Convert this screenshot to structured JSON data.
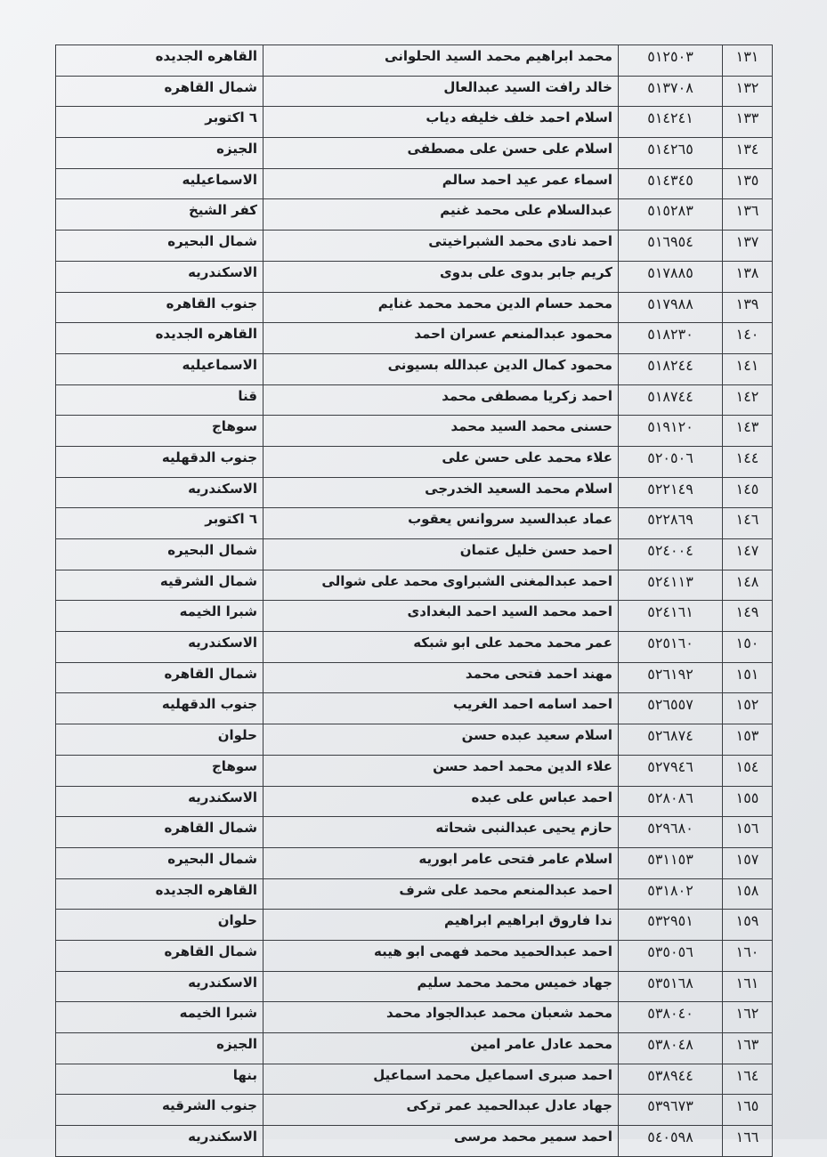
{
  "rows": [
    {
      "num": "١٣١",
      "code": "٥١٢٥٠٣",
      "name": "محمد ابراهيم محمد السيد الحلوانى",
      "gov": "القاهره الجديده"
    },
    {
      "num": "١٣٢",
      "code": "٥١٣٧٠٨",
      "name": "خالد رافت السيد عبدالعال",
      "gov": "شمال القاهره"
    },
    {
      "num": "١٣٣",
      "code": "٥١٤٢٤١",
      "name": "اسلام احمد خلف خليفه دياب",
      "gov": "٦ اكتوبر"
    },
    {
      "num": "١٣٤",
      "code": "٥١٤٢٦٥",
      "name": "اسلام على حسن على مصطفى",
      "gov": "الجيزه"
    },
    {
      "num": "١٣٥",
      "code": "٥١٤٣٤٥",
      "name": "اسماء عمر عيد احمد سالم",
      "gov": "الاسماعيليه"
    },
    {
      "num": "١٣٦",
      "code": "٥١٥٢٨٣",
      "name": "عبدالسلام على محمد غنيم",
      "gov": "كفر الشيخ"
    },
    {
      "num": "١٣٧",
      "code": "٥١٦٩٥٤",
      "name": "احمد نادى محمد الشبراخيتى",
      "gov": "شمال البحيره"
    },
    {
      "num": "١٣٨",
      "code": "٥١٧٨٨٥",
      "name": "كريم جابر بدوى على بدوى",
      "gov": "الاسكندريه"
    },
    {
      "num": "١٣٩",
      "code": "٥١٧٩٨٨",
      "name": "محمد حسام الدين محمد محمد غنايم",
      "gov": "جنوب القاهره"
    },
    {
      "num": "١٤٠",
      "code": "٥١٨٢٣٠",
      "name": "محمود عبدالمنعم عسران احمد",
      "gov": "القاهره الجديده"
    },
    {
      "num": "١٤١",
      "code": "٥١٨٢٤٤",
      "name": "محمود كمال الدين عبدالله بسيونى",
      "gov": "الاسماعيليه"
    },
    {
      "num": "١٤٢",
      "code": "٥١٨٧٤٤",
      "name": "احمد زكريا مصطفى محمد",
      "gov": "قنا"
    },
    {
      "num": "١٤٣",
      "code": "٥١٩١٢٠",
      "name": "حسنى محمد السيد محمد",
      "gov": "سوهاج"
    },
    {
      "num": "١٤٤",
      "code": "٥٢٠٥٠٦",
      "name": "علاء محمد على حسن على",
      "gov": "جنوب الدقهليه"
    },
    {
      "num": "١٤٥",
      "code": "٥٢٢١٤٩",
      "name": "اسلام محمد السعيد الخدرجى",
      "gov": "الاسكندريه"
    },
    {
      "num": "١٤٦",
      "code": "٥٢٢٨٦٩",
      "name": "عماد عبدالسيد سروانس يعقوب",
      "gov": "٦ اكتوبر"
    },
    {
      "num": "١٤٧",
      "code": "٥٢٤٠٠٤",
      "name": "احمد حسن خليل عتمان",
      "gov": "شمال البحيره"
    },
    {
      "num": "١٤٨",
      "code": "٥٢٤١١٣",
      "name": "احمد عبدالمغنى الشبراوى محمد على شوالى",
      "gov": "شمال الشرقيه"
    },
    {
      "num": "١٤٩",
      "code": "٥٢٤١٦١",
      "name": "احمد محمد السيد احمد البغدادى",
      "gov": "شبرا الخيمه"
    },
    {
      "num": "١٥٠",
      "code": "٥٢٥١٦٠",
      "name": "عمر محمد محمد على ابو شبكه",
      "gov": "الاسكندريه"
    },
    {
      "num": "١٥١",
      "code": "٥٢٦١٩٢",
      "name": "مهند احمد فتحى محمد",
      "gov": "شمال القاهره"
    },
    {
      "num": "١٥٢",
      "code": "٥٢٦٥٥٧",
      "name": "احمد اسامه احمد الغريب",
      "gov": "جنوب الدقهليه"
    },
    {
      "num": "١٥٣",
      "code": "٥٢٦٨٧٤",
      "name": "اسلام سعيد عبده حسن",
      "gov": "حلوان"
    },
    {
      "num": "١٥٤",
      "code": "٥٢٧٩٤٦",
      "name": "علاء الدين محمد احمد حسن",
      "gov": "سوهاج"
    },
    {
      "num": "١٥٥",
      "code": "٥٢٨٠٨٦",
      "name": "احمد عباس على عبده",
      "gov": "الاسكندريه"
    },
    {
      "num": "١٥٦",
      "code": "٥٢٩٦٨٠",
      "name": "حازم يحيى عبدالنبى شحاته",
      "gov": "شمال القاهره"
    },
    {
      "num": "١٥٧",
      "code": "٥٣١١٥٣",
      "name": "اسلام عامر فتحى عامر ابوريه",
      "gov": "شمال البحيره"
    },
    {
      "num": "١٥٨",
      "code": "٥٣١٨٠٢",
      "name": "احمد عبدالمنعم محمد على شرف",
      "gov": "القاهره الجديده"
    },
    {
      "num": "١٥٩",
      "code": "٥٣٢٩٥١",
      "name": "ندا فاروق ابراهيم ابراهيم",
      "gov": "حلوان"
    },
    {
      "num": "١٦٠",
      "code": "٥٣٥٠٥٦",
      "name": "احمد عبدالحميد محمد فهمى ابو هيبه",
      "gov": "شمال القاهره"
    },
    {
      "num": "١٦١",
      "code": "٥٣٥١٦٨",
      "name": "جهاد خميس محمد محمد سليم",
      "gov": "الاسكندريه"
    },
    {
      "num": "١٦٢",
      "code": "٥٣٨٠٤٠",
      "name": "محمد شعبان محمد عبدالجواد محمد",
      "gov": "شبرا الخيمه"
    },
    {
      "num": "١٦٣",
      "code": "٥٣٨٠٤٨",
      "name": "محمد عادل عامر امين",
      "gov": "الجيزه"
    },
    {
      "num": "١٦٤",
      "code": "٥٣٨٩٤٤",
      "name": "احمد صبرى اسماعيل محمد اسماعيل",
      "gov": "بنها"
    },
    {
      "num": "١٦٥",
      "code": "٥٣٩٦٧٣",
      "name": "جهاد عادل عبدالحميد عمر تركى",
      "gov": "جنوب الشرقيه"
    },
    {
      "num": "١٦٦",
      "code": "٥٤٠٥٩٨",
      "name": "احمد سمير محمد مرسى",
      "gov": "الاسكندريه"
    }
  ]
}
